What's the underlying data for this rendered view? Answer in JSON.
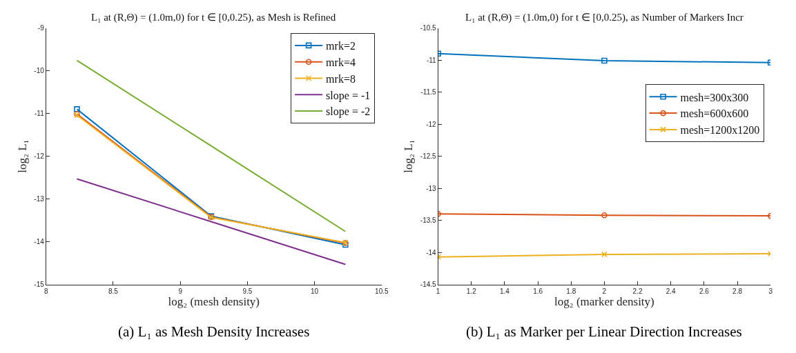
{
  "chart_data": [
    {
      "type": "line",
      "title": "L₁ at (R,Θ) = (1.0m,0) for t ∈ [0,0.25), as Mesh is Refined",
      "xlabel": "log₂ (mesh density)",
      "ylabel": "log₂ L₁",
      "x": [
        8.23,
        9.23,
        10.23
      ],
      "xlim": [
        8,
        10.5
      ],
      "xticks": [
        8,
        8.5,
        9,
        9.5,
        10,
        10.5
      ],
      "ylim": [
        -15,
        -9
      ],
      "yticks": [
        -15,
        -14,
        -13,
        -12,
        -11,
        -10,
        -9
      ],
      "series": [
        {
          "name": "mrk=2",
          "color": "#0072bd",
          "marker": "square",
          "values": [
            -10.9,
            -13.4,
            -14.07
          ]
        },
        {
          "name": "mrk=4",
          "color": "#d95319",
          "marker": "circle",
          "values": [
            -11.01,
            -13.42,
            -14.03
          ]
        },
        {
          "name": "mrk=8",
          "color": "#edb120",
          "marker": "cross",
          "values": [
            -11.04,
            -13.43,
            -14.02
          ]
        },
        {
          "name": "slope = -1",
          "color": "#7e2f8e",
          "marker": "none",
          "values": [
            -12.53,
            -13.53,
            -14.53
          ]
        },
        {
          "name": "slope = -2",
          "color": "#77ac30",
          "marker": "none",
          "values": [
            -9.76,
            -11.76,
            -13.76
          ]
        }
      ],
      "legend": "top right",
      "annotations": [
        "(a) L₁ as Mesh Density Increases"
      ]
    },
    {
      "type": "line",
      "title": "L₁ at (R,Θ) = (1.0m,0) for t ∈ [0,0.25), as Number of Markers Incr",
      "xlabel": "log₂ (marker density)",
      "ylabel": "log₂ L₁",
      "x": [
        1,
        2,
        3
      ],
      "xlim": [
        1,
        3
      ],
      "xticks": [
        1,
        1.2,
        1.4,
        1.6,
        1.8,
        2,
        2.2,
        2.4,
        2.6,
        2.8,
        3
      ],
      "ylim": [
        -14.5,
        -10.5
      ],
      "yticks": [
        -14.5,
        -14,
        -13.5,
        -13,
        -12.5,
        -12,
        -11.5,
        -11,
        -10.5
      ],
      "series": [
        {
          "name": "mesh=300x300",
          "color": "#0072bd",
          "marker": "square",
          "values": [
            -10.9,
            -11.01,
            -11.04
          ]
        },
        {
          "name": "mesh=600x600",
          "color": "#d95319",
          "marker": "circle",
          "values": [
            -13.4,
            -13.42,
            -13.43
          ]
        },
        {
          "name": "mesh=1200x1200",
          "color": "#edb120",
          "marker": "cross",
          "values": [
            -14.07,
            -14.03,
            -14.02
          ]
        }
      ],
      "legend": "right",
      "annotations": [
        "(b) L₁ as Marker per Linear Direction Increases"
      ]
    }
  ]
}
